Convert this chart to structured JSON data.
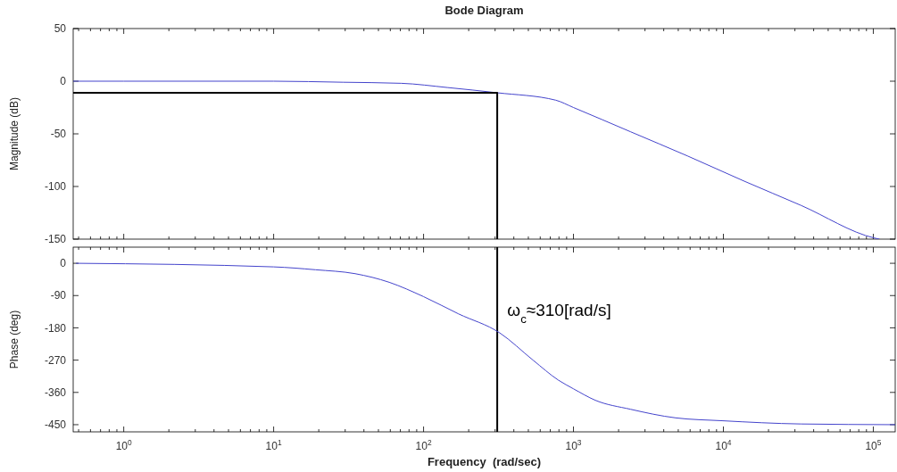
{
  "chart_data": [
    {
      "type": "line",
      "title": "Bode Diagram",
      "ylabel": "Magnitude (dB)",
      "xlim": [
        0.46,
        140000
      ],
      "ylim": [
        -150,
        50
      ],
      "log": "x",
      "tick_labels": "y",
      "xticks": [
        {
          "value": 1,
          "label": null
        },
        {
          "value": 10,
          "label": null
        },
        {
          "value": 100,
          "label": null
        },
        {
          "value": 1000,
          "label": null
        },
        {
          "value": 10000,
          "label": null
        },
        {
          "value": 100000,
          "label": null
        },
        {
          "value": 0.5,
          "label": null
        },
        {
          "value": 0.6,
          "label": null
        },
        {
          "value": 0.7,
          "label": null
        },
        {
          "value": 0.8,
          "label": null
        },
        {
          "value": 0.9,
          "label": null
        },
        {
          "value": 2,
          "label": null
        },
        {
          "value": 3,
          "label": null
        },
        {
          "value": 4,
          "label": null
        },
        {
          "value": 5,
          "label": null
        },
        {
          "value": 6,
          "label": null
        },
        {
          "value": 7,
          "label": null
        },
        {
          "value": 8,
          "label": null
        },
        {
          "value": 9,
          "label": null
        },
        {
          "value": 20,
          "label": null
        },
        {
          "value": 30,
          "label": null
        },
        {
          "value": 40,
          "label": null
        },
        {
          "value": 50,
          "label": null
        },
        {
          "value": 60,
          "label": null
        },
        {
          "value": 70,
          "label": null
        },
        {
          "value": 80,
          "label": null
        },
        {
          "value": 90,
          "label": null
        },
        {
          "value": 200,
          "label": null
        },
        {
          "value": 300,
          "label": null
        },
        {
          "value": 400,
          "label": null
        },
        {
          "value": 500,
          "label": null
        },
        {
          "value": 600,
          "label": null
        },
        {
          "value": 700,
          "label": null
        },
        {
          "value": 800,
          "label": null
        },
        {
          "value": 900,
          "label": null
        },
        {
          "value": 2000,
          "label": null
        },
        {
          "value": 3000,
          "label": null
        },
        {
          "value": 4000,
          "label": null
        },
        {
          "value": 5000,
          "label": null
        },
        {
          "value": 6000,
          "label": null
        },
        {
          "value": 7000,
          "label": null
        },
        {
          "value": 8000,
          "label": null
        },
        {
          "value": 9000,
          "label": null
        },
        {
          "value": 20000,
          "label": null
        },
        {
          "value": 30000,
          "label": null
        },
        {
          "value": 40000,
          "label": null
        },
        {
          "value": 50000,
          "label": null
        },
        {
          "value": 60000,
          "label": null
        },
        {
          "value": 70000,
          "label": null
        },
        {
          "value": 80000,
          "label": null
        },
        {
          "value": 90000,
          "label": null
        }
      ],
      "yticks": [
        -150,
        -100,
        -50,
        0,
        50
      ],
      "series": [
        {
          "color": "#4444cc",
          "x": [
            0.46,
            1,
            10,
            29,
            71,
            144,
            310,
            760,
            1000,
            2400,
            5760,
            13800,
            33000,
            102000,
            110000
          ],
          "values": [
            0,
            0,
            0,
            -1,
            -2,
            -6,
            -11,
            -18,
            -25,
            -48,
            -71,
            -95,
            -118,
            -149,
            -150
          ]
        },
        {
          "color": "#000000",
          "x": [
            0.46,
            310,
            310
          ],
          "values": [
            -11,
            -11,
            -150
          ]
        }
      ]
    },
    {
      "type": "line",
      "xlabel": "Frequency  (rad/sec)",
      "ylabel": "Phase (deg)",
      "xlim": [
        0.46,
        140000
      ],
      "ylim": [
        -470,
        45
      ],
      "log": "x",
      "xticks": [
        {
          "value": 1,
          "label": "10$^{0}$"
        },
        {
          "value": 10,
          "label": "10$^{1}$"
        },
        {
          "value": 100,
          "label": "10$^{2}$"
        },
        {
          "value": 1000,
          "label": "10$^{3}$"
        },
        {
          "value": 10000,
          "label": "10$^{4}$"
        },
        {
          "value": 100000,
          "label": "10$^{5}$"
        },
        {
          "value": 0.5,
          "label": null
        },
        {
          "value": 0.6,
          "label": null
        },
        {
          "value": 0.7,
          "label": null
        },
        {
          "value": 0.8,
          "label": null
        },
        {
          "value": 0.9,
          "label": null
        },
        {
          "value": 2,
          "label": null
        },
        {
          "value": 3,
          "label": null
        },
        {
          "value": 4,
          "label": null
        },
        {
          "value": 5,
          "label": null
        },
        {
          "value": 6,
          "label": null
        },
        {
          "value": 7,
          "label": null
        },
        {
          "value": 8,
          "label": null
        },
        {
          "value": 9,
          "label": null
        },
        {
          "value": 20,
          "label": null
        },
        {
          "value": 30,
          "label": null
        },
        {
          "value": 40,
          "label": null
        },
        {
          "value": 50,
          "label": null
        },
        {
          "value": 60,
          "label": null
        },
        {
          "value": 70,
          "label": null
        },
        {
          "value": 80,
          "label": null
        },
        {
          "value": 90,
          "label": null
        },
        {
          "value": 200,
          "label": null
        },
        {
          "value": 300,
          "label": null
        },
        {
          "value": 400,
          "label": null
        },
        {
          "value": 500,
          "label": null
        },
        {
          "value": 600,
          "label": null
        },
        {
          "value": 700,
          "label": null
        },
        {
          "value": 800,
          "label": null
        },
        {
          "value": 900,
          "label": null
        },
        {
          "value": 2000,
          "label": null
        },
        {
          "value": 3000,
          "label": null
        },
        {
          "value": 4000,
          "label": null
        },
        {
          "value": 5000,
          "label": null
        },
        {
          "value": 6000,
          "label": null
        },
        {
          "value": 7000,
          "label": null
        },
        {
          "value": 8000,
          "label": null
        },
        {
          "value": 9000,
          "label": null
        },
        {
          "value": 20000,
          "label": null
        },
        {
          "value": 30000,
          "label": null
        },
        {
          "value": 40000,
          "label": null
        },
        {
          "value": 50000,
          "label": null
        },
        {
          "value": 60000,
          "label": null
        },
        {
          "value": 70000,
          "label": null
        },
        {
          "value": 80000,
          "label": null
        },
        {
          "value": 90000,
          "label": null
        }
      ],
      "yticks": [
        -450,
        -360,
        -270,
        -180,
        -90,
        0
      ],
      "series": [
        {
          "color": "#4444cc",
          "x": [
            0.48,
            10,
            19,
            35,
            59,
            100,
            171,
            322,
            537,
            794,
            1000,
            1400,
            2400,
            4800,
            9800,
            33000,
            140000
          ],
          "values": [
            0,
            -10,
            -18,
            -29,
            -53,
            -93,
            -141,
            -194,
            -270,
            -326,
            -350,
            -382,
            -407,
            -431,
            -439,
            -448,
            -450
          ]
        }
      ],
      "ref_lines": [
        {
          "axis": "x",
          "value": 310,
          "color": "#000000"
        }
      ],
      "annotations": [
        "ω$_{c}$≈310[rad/s]"
      ]
    }
  ]
}
